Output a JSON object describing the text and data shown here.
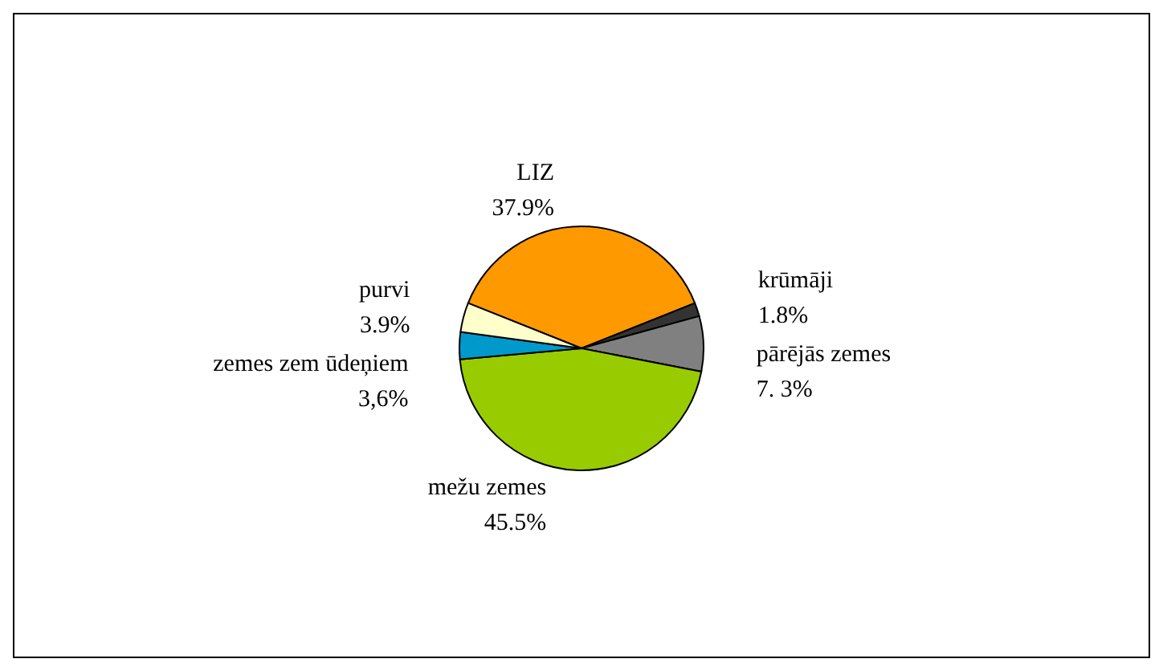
{
  "chart_data": {
    "type": "pie",
    "categories": [
      "LIZ",
      "krūmāji",
      "pārējās zemes",
      "mežu zemes",
      "zemes zem ūdeņiem",
      "purvi"
    ],
    "values": [
      37.9,
      1.8,
      7.3,
      45.5,
      3.6,
      3.9
    ],
    "value_labels": [
      "37.9%",
      "1.8%",
      "7. 3%",
      "45.5%",
      "3,6%",
      "3.9%"
    ],
    "colors": [
      "#ff9900",
      "#333333",
      "#808080",
      "#99cc00",
      "#0099cc",
      "#ffffcc"
    ]
  }
}
